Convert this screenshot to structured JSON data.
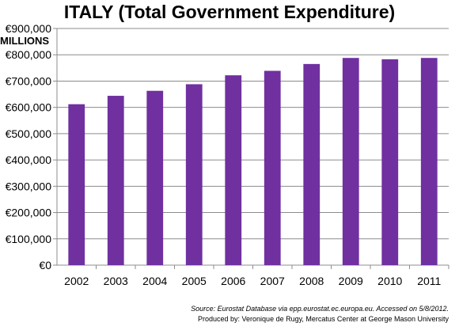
{
  "chart_data": {
    "type": "bar",
    "title": "ITALY (Total Government Expenditure)",
    "ylabel": "MILLIONS",
    "categories": [
      "2002",
      "2003",
      "2004",
      "2005",
      "2006",
      "2007",
      "2008",
      "2009",
      "2010",
      "2011"
    ],
    "series": [
      {
        "values": [
          612000,
          644000,
          663000,
          688000,
          722000,
          739000,
          765000,
          788000,
          783000,
          788000
        ],
        "color": "#7030a0"
      }
    ],
    "ylim": [
      0,
      900000
    ],
    "yticks": [
      0,
      100000,
      200000,
      300000,
      400000,
      500000,
      600000,
      700000,
      800000,
      900000
    ],
    "ytick_labels": [
      "€0",
      "€100,000",
      "€200,000",
      "€300,000",
      "€400,000",
      "€500,000",
      "€600,000",
      "€700,000",
      "€800,000",
      "€900,000"
    ],
    "grid": true,
    "legend": "none"
  },
  "footer": {
    "source": "Source: Eurostat Database via epp.eurostat.ec.europa.eu. Accessed on 5/8/2012.",
    "produced_by": "Produced by: Veronique de Rugy, Mercatus Center at George Mason University"
  }
}
